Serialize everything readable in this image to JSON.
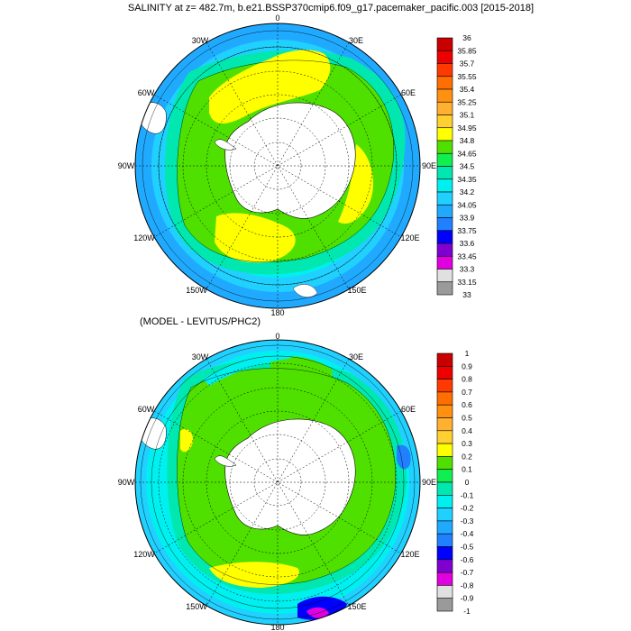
{
  "panels": [
    {
      "title": "SALINITY at z= 482.7m, b.e21.BSSP370cmip6.f09_g17.pacemaker_pacific.003 [2015-2018]",
      "colorbar": {
        "labels": [
          "36",
          "35.85",
          "35.7",
          "35.55",
          "35.4",
          "35.25",
          "35.1",
          "34.95",
          "34.8",
          "34.65",
          "34.5",
          "34.35",
          "34.2",
          "34.05",
          "33.9",
          "33.75",
          "33.6",
          "33.45",
          "33.3",
          "33.15",
          "33"
        ],
        "colors": [
          "#c80000",
          "#ee0000",
          "#ff3a00",
          "#ff6e00",
          "#ff9010",
          "#ffb030",
          "#ffd030",
          "#ffff00",
          "#4fe000",
          "#10ee50",
          "#00e8b0",
          "#00f0f0",
          "#20d0ff",
          "#20aaff",
          "#2080ff",
          "#0000ff",
          "#8000d0",
          "#e000e0",
          "#e0e0e0",
          "#9a9a9a"
        ]
      },
      "longitudes": [
        "0",
        "30E",
        "60E",
        "90E",
        "120E",
        "150E",
        "180",
        "150W",
        "120W",
        "90W",
        "60W",
        "30W"
      ]
    },
    {
      "title": "(MODEL - LEVITUS/PHC2)",
      "colorbar": {
        "labels": [
          "1",
          "0.9",
          "0.8",
          "0.7",
          "0.6",
          "0.5",
          "0.4",
          "0.3",
          "0.2",
          "0.1",
          "0",
          "-0.1",
          "-0.2",
          "-0.3",
          "-0.4",
          "-0.5",
          "-0.6",
          "-0.7",
          "-0.8",
          "-0.9",
          "-1"
        ],
        "colors": [
          "#c80000",
          "#ee0000",
          "#ff3a00",
          "#ff6e00",
          "#ff9010",
          "#ffb030",
          "#ffd030",
          "#ffff00",
          "#4fe000",
          "#10ee50",
          "#00e8b0",
          "#00f0f0",
          "#20d0ff",
          "#20aaff",
          "#2080ff",
          "#0000ff",
          "#8000d0",
          "#e000e0",
          "#e0e0e0",
          "#9a9a9a"
        ]
      },
      "longitudes": [
        "0",
        "30E",
        "60E",
        "90E",
        "120E",
        "150E",
        "180",
        "150W",
        "120W",
        "90W",
        "60W",
        "30W"
      ]
    }
  ]
}
